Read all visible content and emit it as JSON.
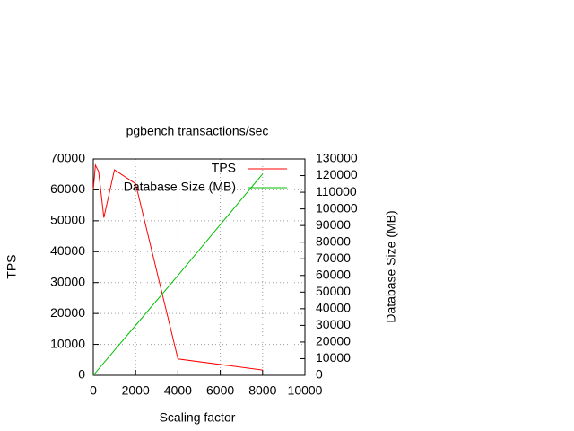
{
  "chart_data": {
    "type": "line",
    "title": "pgbench transactions/sec",
    "x_label": "Scaling factor",
    "y_label": "TPS",
    "y2_label": "Database Size (MB)",
    "x": [
      1,
      100,
      250,
      500,
      1000,
      2000,
      4000,
      8000
    ],
    "series": [
      {
        "name": "TPS",
        "color": "#ff0000",
        "values": [
          60000,
          68000,
          66000,
          51000,
          66500,
          62000,
          5300,
          1700
        ]
      },
      {
        "name": "Database Size (MB)",
        "color": "#00c000",
        "axis": "y2",
        "values": [
          16,
          1500,
          3750,
          7500,
          15000,
          30000,
          60000,
          121000
        ]
      }
    ],
    "xlim": [
      0,
      10000
    ],
    "xticks": [
      0,
      2000,
      4000,
      6000,
      8000,
      10000
    ],
    "ylim": [
      0,
      70000
    ],
    "yticks": [
      0,
      10000,
      20000,
      30000,
      40000,
      50000,
      60000,
      70000
    ],
    "y2lim": [
      0,
      130000
    ],
    "y2ticks": [
      0,
      10000,
      20000,
      30000,
      40000,
      50000,
      60000,
      70000,
      80000,
      90000,
      100000,
      110000,
      120000,
      130000
    ],
    "grid": true,
    "legend": "top-right"
  }
}
